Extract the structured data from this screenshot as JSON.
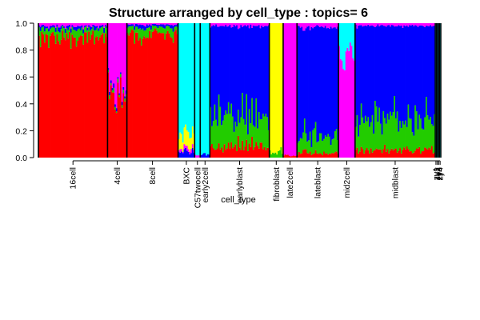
{
  "chart_data": {
    "type": "bar",
    "stacked": true,
    "title": "Structure arranged by cell_type : topics= 6",
    "xlabel": "cell_type",
    "ylabel": "",
    "ylim": [
      0,
      1
    ],
    "yticks": [
      "0.0",
      "0.2",
      "0.4",
      "0.6",
      "0.8",
      "1.0"
    ],
    "topic_colors": [
      "#ff0000",
      "#22cc00",
      "#0000ff",
      "#ff00ff",
      "#ffff00",
      "#00ffff"
    ],
    "categories": [
      {
        "label": "16cell",
        "n": 50,
        "mean": [
          0.9,
          0.06,
          0.02,
          0.02,
          0.0,
          0.0
        ]
      },
      {
        "label": "4cell",
        "n": 14,
        "mean": [
          0.5,
          0.02,
          0.02,
          0.46,
          0.0,
          0.0
        ]
      },
      {
        "label": "8cell",
        "n": 37,
        "mean": [
          0.92,
          0.05,
          0.02,
          0.01,
          0.0,
          0.0
        ]
      },
      {
        "label": "BXC",
        "n": 12,
        "mean": [
          0.0,
          0.0,
          0.04,
          0.02,
          0.12,
          0.82
        ]
      },
      {
        "label": "C57twocell",
        "n": 4,
        "mean": [
          0.0,
          0.0,
          0.0,
          0.02,
          0.0,
          0.98
        ]
      },
      {
        "label": "early2cell",
        "n": 7,
        "mean": [
          0.0,
          0.0,
          0.02,
          0.0,
          0.0,
          0.98
        ]
      },
      {
        "label": "earlyblast",
        "n": 43,
        "mean": [
          0.08,
          0.22,
          0.68,
          0.02,
          0.0,
          0.0
        ]
      },
      {
        "label": "fibroblast",
        "n": 10,
        "mean": [
          0.0,
          0.05,
          0.0,
          0.0,
          0.95,
          0.0
        ]
      },
      {
        "label": "late2cell",
        "n": 10,
        "mean": [
          0.02,
          0.0,
          0.0,
          0.98,
          0.0,
          0.0
        ]
      },
      {
        "label": "lateblast",
        "n": 30,
        "mean": [
          0.03,
          0.12,
          0.82,
          0.03,
          0.0,
          0.0
        ]
      },
      {
        "label": "mid2cell",
        "n": 12,
        "mean": [
          0.0,
          0.0,
          0.0,
          0.78,
          0.0,
          0.22
        ]
      },
      {
        "label": "midblast",
        "n": 58,
        "mean": [
          0.06,
          0.24,
          0.68,
          0.02,
          0.0,
          0.0
        ]
      },
      {
        "label": "zy1",
        "n": 1,
        "mean": [
          0.0,
          0.0,
          0.0,
          0.0,
          0.0,
          1.0
        ]
      },
      {
        "label": "zy2",
        "n": 1,
        "mean": [
          0.0,
          0.0,
          0.0,
          0.0,
          0.0,
          1.0
        ]
      },
      {
        "label": "zy3",
        "n": 1,
        "mean": [
          0.0,
          0.0,
          0.0,
          0.0,
          0.0,
          1.0
        ]
      },
      {
        "label": "zy4",
        "n": 1,
        "mean": [
          0.0,
          0.0,
          0.0,
          0.0,
          0.0,
          1.0
        ]
      }
    ]
  }
}
